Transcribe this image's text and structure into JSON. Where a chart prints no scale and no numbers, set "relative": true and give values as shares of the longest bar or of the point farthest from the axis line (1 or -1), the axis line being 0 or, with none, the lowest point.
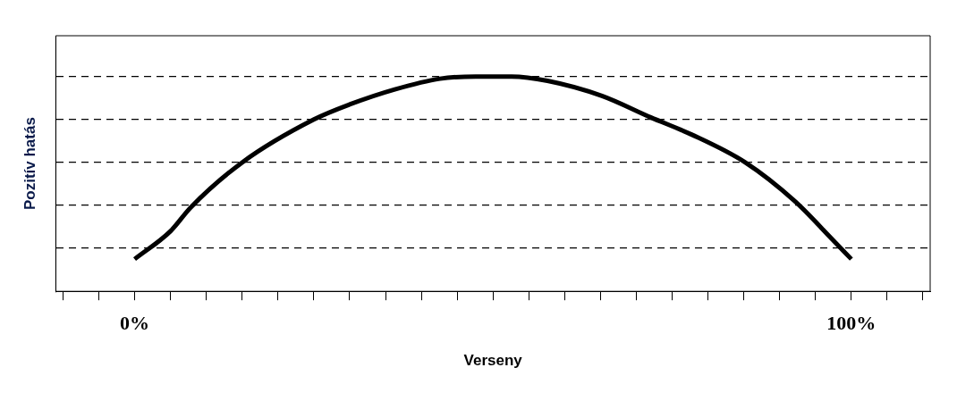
{
  "chart_data": {
    "type": "line",
    "xlabel": "Verseny",
    "ylabel": "Pozitív hatás",
    "relative": true,
    "grid": "y",
    "marker": "none",
    "tick_labels": "x",
    "xlim": [
      -11,
      111
    ],
    "xticks": [
      {
        "value": -10,
        "label": null
      },
      {
        "value": -5,
        "label": null
      },
      {
        "value": 0,
        "label": "0%"
      },
      {
        "value": 5,
        "label": null
      },
      {
        "value": 10,
        "label": null
      },
      {
        "value": 15,
        "label": null
      },
      {
        "value": 20,
        "label": null
      },
      {
        "value": 25,
        "label": null
      },
      {
        "value": 30,
        "label": null
      },
      {
        "value": 35,
        "label": null
      },
      {
        "value": 40,
        "label": null
      },
      {
        "value": 45,
        "label": null
      },
      {
        "value": 50,
        "label": null
      },
      {
        "value": 55,
        "label": null
      },
      {
        "value": 60,
        "label": null
      },
      {
        "value": 65,
        "label": null
      },
      {
        "value": 70,
        "label": null
      },
      {
        "value": 75,
        "label": null
      },
      {
        "value": 80,
        "label": null
      },
      {
        "value": 85,
        "label": null
      },
      {
        "value": 90,
        "label": null
      },
      {
        "value": 95,
        "label": null
      },
      {
        "value": 100,
        "label": "100%"
      },
      {
        "value": 105,
        "label": null
      },
      {
        "value": 110,
        "label": null
      }
    ],
    "x": [
      0,
      5,
      7.8,
      15,
      25,
      30,
      36.3,
      42.6,
      47.6,
      52.6,
      57.6,
      65.2,
      72,
      77.7,
      85.2,
      92.1,
      97.4,
      100
    ],
    "series": [
      {
        "color": "#000000",
        "values": [
          0.15,
          0.28,
          0.39,
          0.6,
          0.8,
          0.87,
          0.94,
          0.99,
          1,
          1,
          0.98,
          0.91,
          0.81,
          0.73,
          0.6,
          0.42,
          0.24,
          0.15
        ]
      }
    ]
  }
}
